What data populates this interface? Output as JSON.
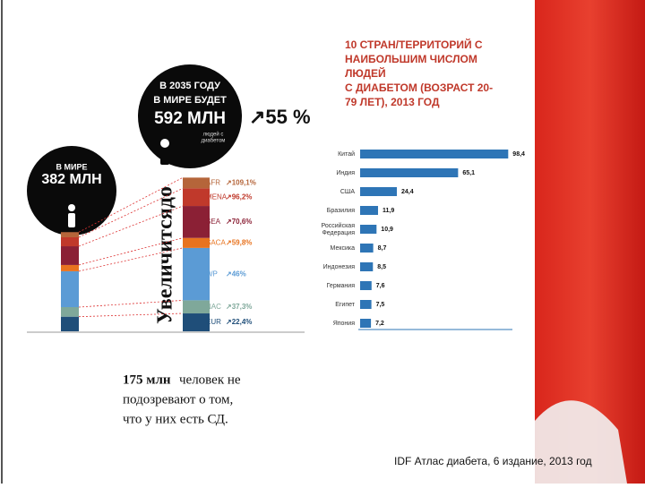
{
  "left_circle": {
    "line1": "В МИРЕ",
    "line2": "382 МЛН"
  },
  "right_circle": {
    "line1": "В 2035 ГОДУ",
    "line2": "В МИРЕ БУДЕТ",
    "line3": "592 МЛН",
    "line4": "людей с",
    "line5": "диабетом"
  },
  "growth_total": "↗55 %",
  "vertical_text": "Увеличитсядо",
  "regions": [
    {
      "name": "EUR",
      "growth": "↗22,4%",
      "color": "#1f4e79",
      "values": [
        56.3,
        68.9
      ]
    },
    {
      "name": "NAC",
      "growth": "↗37,3%",
      "color": "#7fa89a",
      "values": [
        36.8,
        50.4
      ]
    },
    {
      "name": "WP",
      "growth": "↗46%",
      "color": "#5b9bd5",
      "values": [
        138.2,
        201.8
      ]
    },
    {
      "name": "SACA",
      "growth": "↗59,8%",
      "color": "#e8731f",
      "values": [
        24.1,
        38.5
      ]
    },
    {
      "name": "SEA",
      "growth": "↗70,6%",
      "color": "#8b2035",
      "values": [
        72.1,
        123
      ]
    },
    {
      "name": "MENA",
      "growth": "↗96,2%",
      "color": "#c0392b",
      "values": [
        34.6,
        67.9
      ]
    },
    {
      "name": "AFR",
      "growth": "↗109,1%",
      "color": "#b5653a",
      "values": [
        19.8,
        41.4
      ]
    }
  ],
  "note": {
    "bold": "175 млн",
    "lines": [
      "человек не",
      "подозревают о том,",
      "что у них есть СД."
    ]
  },
  "source": "IDF Атлас диабета, 6 издание, 2013 год",
  "chart_data": {
    "type": "bar",
    "orientation": "horizontal",
    "title": [
      "10 СТРАН/ТЕРРИТОРИЙ С",
      "НАИБОЛЬШИМ ЧИСЛОМ",
      "ЛЮДЕЙ",
      "С ДИАБЕТОМ (ВОЗРАСТ 20-",
      "79 ЛЕТ), 2013 ГОД"
    ],
    "categories": [
      "Китай",
      "Индия",
      "США",
      "Бразилия",
      "Российская Федерация",
      "Мексика",
      "Индонезия",
      "Германия",
      "Египет",
      "Япония"
    ],
    "values": [
      98.4,
      65.1,
      24.4,
      11.9,
      10.9,
      8.7,
      8.5,
      7.6,
      7.5,
      7.2
    ],
    "value_labels": [
      "98,4",
      "65,1",
      "24,4",
      "11,9",
      "10,9",
      "8,7",
      "8,5",
      "7,6",
      "7,5",
      "7,2"
    ],
    "color": "#2e75b6",
    "xlim": [
      0,
      100
    ]
  }
}
